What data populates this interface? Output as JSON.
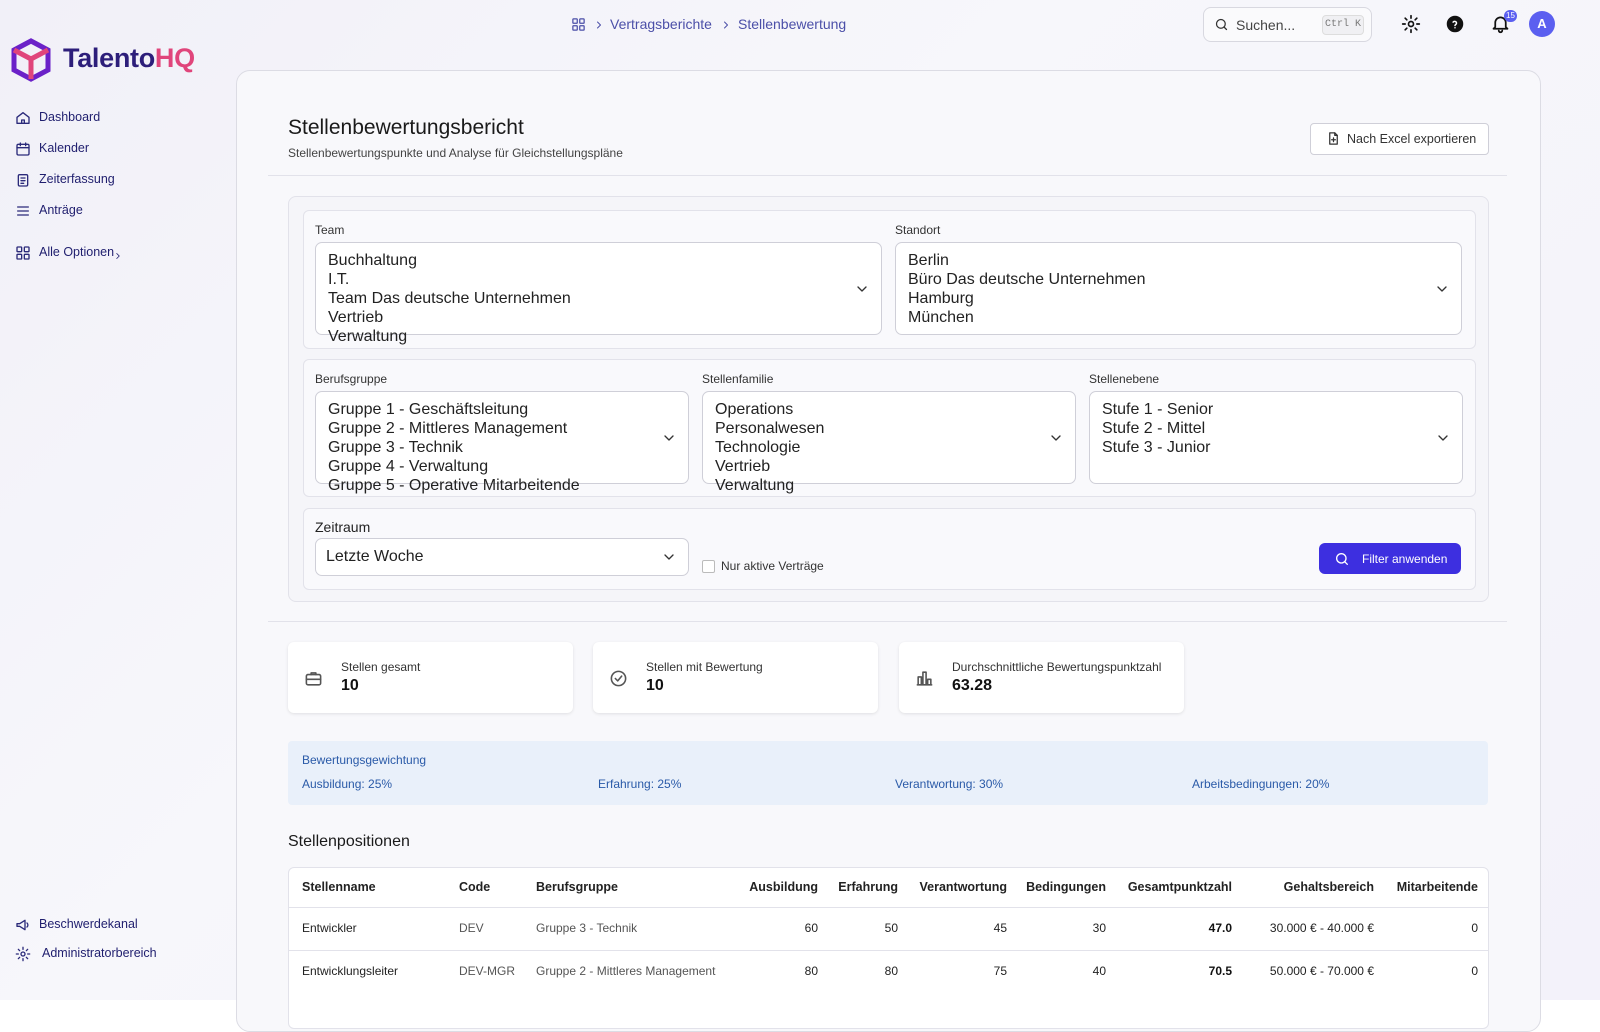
{
  "brand": {
    "name": "Talento",
    "accent": "HQ"
  },
  "sidebar": {
    "nav": [
      "Dashboard",
      "Kalender",
      "Zeiterfassung",
      "Anträge",
      "Alle Optionen"
    ],
    "footer": [
      "Beschwerdekanal",
      "Administratorbereich"
    ]
  },
  "topbar": {
    "breadcrumb": [
      "Vertragsberichte",
      "Stellenbewertung"
    ],
    "search": "Suchen...",
    "shortcut": "Ctrl K",
    "notifications": 15,
    "avatar": "A"
  },
  "header": {
    "title": "Stellenbewertungsbericht",
    "subtitle": "Stellenbewertungspunkte und Analyse für Gleichstellungspläne",
    "export": "Nach Excel exportieren"
  },
  "filters": {
    "team": {
      "label": "Team",
      "options": [
        "Buchhaltung",
        "I.T.",
        "Team Das deutsche Unternehmen",
        "Vertrieb",
        "Verwaltung"
      ]
    },
    "standort": {
      "label": "Standort",
      "options": [
        "Berlin",
        "Büro Das deutsche Unternehmen",
        "Hamburg",
        "München"
      ]
    },
    "berufsgruppe": {
      "label": "Berufsgruppe",
      "options": [
        "Gruppe 1 - Geschäftsleitung",
        "Gruppe 2 - Mittleres Management",
        "Gruppe 3 - Technik",
        "Gruppe 4 - Verwaltung",
        "Gruppe 5 - Operative Mitarbeitende"
      ]
    },
    "stellenfamilie": {
      "label": "Stellenfamilie",
      "options": [
        "Operations",
        "Personalwesen",
        "Technologie",
        "Vertrieb",
        "Verwaltung"
      ]
    },
    "stellenebene": {
      "label": "Stellenebene",
      "options": [
        "Stufe 1 - Senior",
        "Stufe 2 - Mittel",
        "Stufe 3 - Junior"
      ]
    },
    "zeitraum": {
      "label": "Zeitraum",
      "value": "Letzte Woche"
    },
    "checkbox": "Nur aktive Verträge",
    "apply": "Filter anwenden"
  },
  "stats": [
    {
      "label": "Stellen gesamt",
      "value": 10
    },
    {
      "label": "Stellen mit Bewertung",
      "value": 10
    },
    {
      "label": "Durchschnittliche Bewertungspunktzahl",
      "value": 63.28
    }
  ],
  "weights": {
    "title": "Bewertungsgewichtung",
    "items": [
      "Ausbildung: 25%",
      "Erfahrung: 25%",
      "Verantwortung: 30%",
      "Arbeitsbedingungen: 20%"
    ]
  },
  "table": {
    "title": "Stellenpositionen",
    "columns": [
      "Stellenname",
      "Code",
      "Berufsgruppe",
      "Ausbildung",
      "Erfahrung",
      "Verantwortung",
      "Bedingungen",
      "Gesamtpunktzahl",
      "Gehaltsbereich",
      "Mitarbeitende"
    ],
    "rows": [
      [
        "Entwickler",
        "DEV",
        "Gruppe 3 - Technik",
        60,
        50,
        45,
        30,
        "47.0",
        "30.000 € - 40.000 €",
        0
      ],
      [
        "Entwicklungsleiter",
        "DEV-MGR",
        "Gruppe 2 - Mittleres Management",
        80,
        80,
        75,
        40,
        "70.5",
        "50.000 € - 70.000 €",
        0
      ]
    ]
  }
}
